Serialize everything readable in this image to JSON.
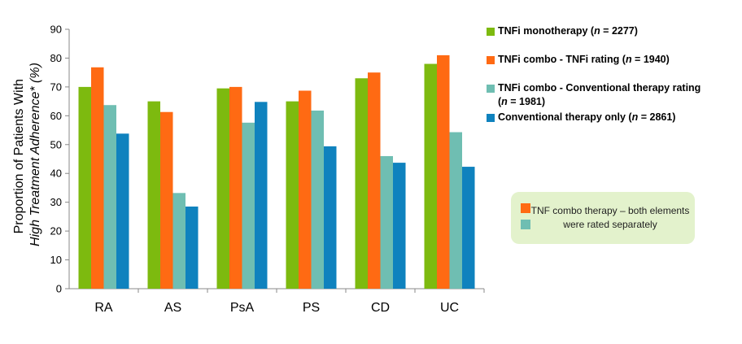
{
  "chart_data": {
    "type": "bar",
    "categories": [
      "RA",
      "AS",
      "PsA",
      "PS",
      "CD",
      "UC"
    ],
    "series": [
      {
        "name": "TNFi monotherapy (n = 2277)",
        "color": "#7dba0f",
        "values": [
          70,
          65,
          69.5,
          65,
          73,
          78
        ]
      },
      {
        "name": "TNFi combo - TNFi rating (n = 1940)",
        "color": "#ff6a13",
        "values": [
          76.8,
          61.3,
          70,
          68.7,
          75,
          81
        ]
      },
      {
        "name": "TNFi combo - Conventional therapy rating (n = 1981)",
        "color": "#6fbeb2",
        "values": [
          63.7,
          33.2,
          57.6,
          61.8,
          46,
          54.3
        ]
      },
      {
        "name": "Conventional therapy only (n = 2861)",
        "color": "#0f82be",
        "values": [
          53.8,
          28.5,
          64.8,
          49.4,
          43.7,
          42.3
        ]
      }
    ],
    "ylabel_line1": "Proportion of Patients With",
    "ylabel_line2": "High Treatment Adherence* (%)",
    "ylim": [
      0,
      90
    ],
    "yticks": [
      0,
      10,
      20,
      30,
      40,
      50,
      60,
      70,
      80,
      90
    ],
    "grid": false,
    "legend_position": "right"
  },
  "legend": {
    "items": [
      {
        "main": "TNFi monotherapy (",
        "n": "n",
        "rest": " = 2277)"
      },
      {
        "main": "TNFi combo - TNFi rating (",
        "n": "n",
        "rest": " = 1940)"
      },
      {
        "main": "TNFi combo - Conventional therapy rating",
        "line2_open": "(",
        "n": "n",
        "rest": " = 1981)"
      },
      {
        "main": "Conventional therapy only (",
        "n": "n",
        "rest": " = 2861)"
      }
    ]
  },
  "note": {
    "text": "TNF combo therapy – both elements were rated separately",
    "swatch_colors": [
      "#ff6a13",
      "#6fbeb2"
    ]
  }
}
